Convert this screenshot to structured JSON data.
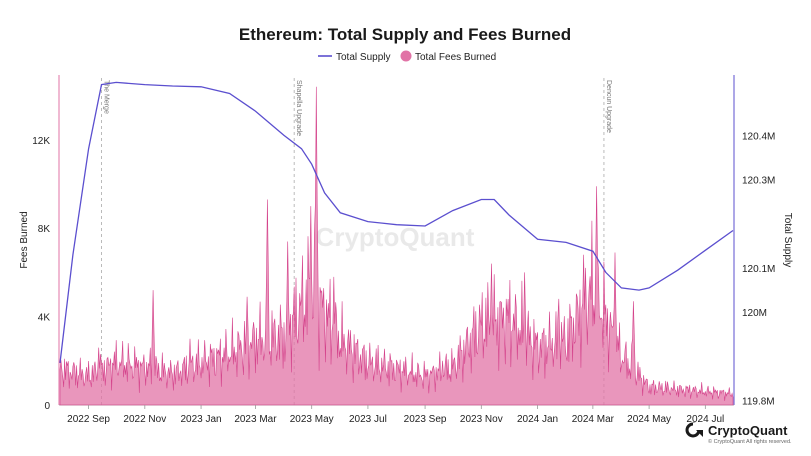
{
  "chart_data": {
    "type": "area",
    "title": "Ethereum: Total Supply and Fees Burned",
    "legend": {
      "placement": "top-center",
      "entries": [
        "Total Supply",
        "Total Fees Burned"
      ]
    },
    "x_ticks": [
      "2022 Sep",
      "2022 Nov",
      "2023 Jan",
      "2023 Mar",
      "2023 May",
      "2023 Jul",
      "2023 Sep",
      "2023 Nov",
      "2024 Jan",
      "2024 Mar",
      "2024 May",
      "2024 Jul"
    ],
    "x_range": [
      "2022-08-01",
      "2024-07-31"
    ],
    "y_left": {
      "label": "Fees Burned",
      "ticks": [
        "0",
        "4K",
        "8K",
        "12K"
      ],
      "range": [
        0,
        14800
      ]
    },
    "y_right": {
      "label": "Total Supply",
      "ticks": [
        "119.8M",
        "120M",
        "120.1M",
        "120.3M",
        "120.4M"
      ],
      "range": [
        119.79,
        120.53
      ]
    },
    "events": [
      {
        "date": "2022-09-15",
        "label": "The Merge"
      },
      {
        "date": "2023-04-12",
        "label": "Shapella Upgrade"
      },
      {
        "date": "2024-03-13",
        "label": "Dencun Upgrade"
      }
    ],
    "series": [
      {
        "name": "Total Supply",
        "axis": "right",
        "color": "#5b4fcf",
        "points": [
          [
            "2022-08-01",
            119.885
          ],
          [
            "2022-08-15",
            120.13
          ],
          [
            "2022-09-01",
            120.37
          ],
          [
            "2022-09-15",
            120.515
          ],
          [
            "2022-10-01",
            120.52
          ],
          [
            "2022-11-01",
            120.515
          ],
          [
            "2022-12-01",
            120.512
          ],
          [
            "2023-01-01",
            120.51
          ],
          [
            "2023-02-01",
            120.495
          ],
          [
            "2023-03-01",
            120.455
          ],
          [
            "2023-04-01",
            120.4
          ],
          [
            "2023-04-20",
            120.37
          ],
          [
            "2023-05-01",
            120.335
          ],
          [
            "2023-05-15",
            120.27
          ],
          [
            "2023-06-01",
            120.225
          ],
          [
            "2023-07-01",
            120.205
          ],
          [
            "2023-08-01",
            120.198
          ],
          [
            "2023-09-01",
            120.195
          ],
          [
            "2023-10-01",
            120.23
          ],
          [
            "2023-11-01",
            120.255
          ],
          [
            "2023-11-15",
            120.255
          ],
          [
            "2023-12-01",
            120.22
          ],
          [
            "2024-01-01",
            120.165
          ],
          [
            "2024-02-01",
            120.158
          ],
          [
            "2024-03-01",
            120.138
          ],
          [
            "2024-03-15",
            120.09
          ],
          [
            "2024-04-01",
            120.055
          ],
          [
            "2024-04-20",
            120.05
          ],
          [
            "2024-05-01",
            120.055
          ],
          [
            "2024-06-01",
            120.095
          ],
          [
            "2024-07-01",
            120.14
          ],
          [
            "2024-07-31",
            120.185
          ]
        ]
      },
      {
        "name": "Total Fees Burned",
        "axis": "left",
        "color": "#e173a6",
        "baseline": [
          [
            "2022-08-01",
            1600
          ],
          [
            "2022-09-01",
            1300
          ],
          [
            "2022-10-01",
            1900
          ],
          [
            "2022-11-01",
            1700
          ],
          [
            "2022-12-01",
            1400
          ],
          [
            "2023-01-01",
            1900
          ],
          [
            "2023-02-01",
            2300
          ],
          [
            "2023-03-01",
            2900
          ],
          [
            "2023-04-01",
            3100
          ],
          [
            "2023-05-01",
            5200
          ],
          [
            "2023-06-01",
            2900
          ],
          [
            "2023-07-01",
            1900
          ],
          [
            "2023-08-01",
            1600
          ],
          [
            "2023-09-01",
            1300
          ],
          [
            "2023-10-01",
            1700
          ],
          [
            "2023-11-01",
            3600
          ],
          [
            "2023-12-01",
            3900
          ],
          [
            "2024-01-01",
            2600
          ],
          [
            "2024-02-01",
            2900
          ],
          [
            "2024-03-01",
            5300
          ],
          [
            "2024-04-01",
            2200
          ],
          [
            "2024-05-01",
            800
          ],
          [
            "2024-06-01",
            700
          ],
          [
            "2024-07-31",
            500
          ]
        ],
        "peaks": [
          [
            "2022-09-12",
            2600
          ],
          [
            "2022-11-10",
            5200
          ],
          [
            "2022-12-20",
            3000
          ],
          [
            "2023-02-20",
            4900
          ],
          [
            "2023-03-14",
            9300
          ],
          [
            "2023-04-05",
            7400
          ],
          [
            "2023-04-30",
            9000
          ],
          [
            "2023-05-06",
            14400
          ],
          [
            "2023-05-25",
            5800
          ],
          [
            "2023-09-20",
            2000
          ],
          [
            "2023-11-12",
            6400
          ],
          [
            "2023-12-18",
            6000
          ],
          [
            "2024-01-24",
            4800
          ],
          [
            "2024-02-20",
            6800
          ],
          [
            "2024-03-05",
            9900
          ],
          [
            "2024-03-25",
            6900
          ],
          [
            "2024-04-14",
            4700
          ]
        ]
      }
    ]
  },
  "watermark": "CryptoQuant",
  "brand": {
    "name": "CryptoQuant",
    "copyright": "© CryptoQuant All rights reserved."
  }
}
